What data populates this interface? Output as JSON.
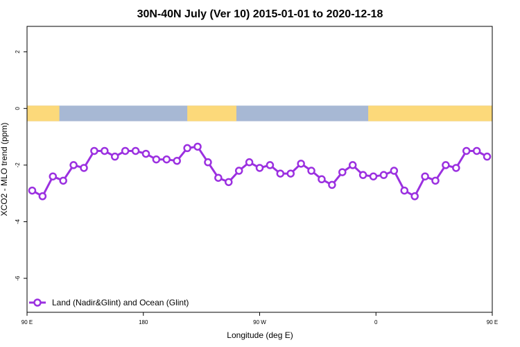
{
  "chart_data": {
    "type": "line",
    "title": "30N-40N July (Ver 10)   2015-01-01 to 2020-12-18",
    "xlabel": "Longitude (deg E)",
    "ylabel": "XCO2 - MLO trend (ppm)",
    "xlim": [
      90,
      450
    ],
    "ylim": [
      -7.2,
      2.9
    ],
    "xticks": [
      {
        "value": 90,
        "label": "90 E"
      },
      {
        "value": 180,
        "label": "180"
      },
      {
        "value": 270,
        "label": "90 W"
      },
      {
        "value": 360,
        "label": "0"
      },
      {
        "value": 450,
        "label": "90 E"
      },
      {
        "value": 540,
        "label": "180"
      }
    ],
    "yticks": [
      {
        "value": 2,
        "label": "2"
      },
      {
        "value": 0,
        "label": "0"
      },
      {
        "value": -2,
        "label": "-2"
      },
      {
        "value": -4,
        "label": "-4"
      },
      {
        "value": -6,
        "label": "-6"
      }
    ],
    "land_band": {
      "ymin": -0.45,
      "ymax": 0.1,
      "ocean_color": "#A7B8D4",
      "land_color": "#FCD97A",
      "land_lon_ranges": [
        [
          90,
          115
        ],
        [
          214,
          252
        ],
        [
          354,
          460
        ],
        [
          470,
          495
        ],
        [
          515,
          538
        ]
      ]
    },
    "series": [
      {
        "name": "Land (Nadir&Glint) and Ocean (Glint)",
        "color": "#9B30E0",
        "x": [
          94,
          102,
          110,
          118,
          126,
          134,
          142,
          150,
          158,
          166,
          174,
          182,
          190,
          198,
          206,
          214,
          222,
          230,
          238,
          246,
          254,
          262,
          270,
          278,
          286,
          294,
          302,
          310,
          318,
          326,
          334,
          342,
          350,
          358,
          366,
          374,
          382,
          390,
          398,
          406,
          414,
          422,
          430,
          438,
          446
        ],
        "y": [
          -2.9,
          -3.1,
          -2.4,
          -2.55,
          -2.0,
          -2.1,
          -1.5,
          -1.5,
          -1.7,
          -1.5,
          -1.5,
          -1.6,
          -1.8,
          -1.8,
          -1.85,
          -1.4,
          -1.35,
          -1.9,
          -2.45,
          -2.6,
          -2.2,
          -1.9,
          -2.1,
          -2.0,
          -2.3,
          -2.3,
          -1.95,
          -2.2,
          -2.5,
          -2.7,
          -2.25,
          -2.0,
          -2.35,
          -2.4,
          -2.35,
          -2.2,
          -2.9,
          -3.1,
          -2.4,
          -2.55,
          -2.0,
          -2.1,
          -1.5,
          -1.5,
          -1.7
        ]
      }
    ],
    "legend": {
      "position": "bottom-left"
    },
    "grid": false
  }
}
